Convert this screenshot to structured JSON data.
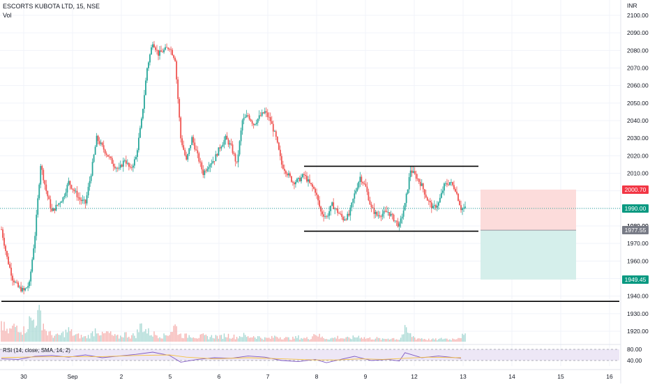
{
  "header": {
    "title": "ESCORTS KUBOTA LTD, 15, NSE",
    "volume_label": "Vol"
  },
  "colors": {
    "up": "#26a69a",
    "down": "#ef5350",
    "volume_up": "#a7d8d3",
    "volume_down": "#f5b3b1",
    "rsi_line": "#7e57c2",
    "rsi_ma": "#f5c142",
    "rsi_band": "#ede7f6",
    "stop_zone": "#fcdcdb",
    "target_zone": "#d5efeb",
    "price_line": "#26a69a",
    "stop_badge": "#f23645",
    "target_badge": "#089981",
    "entry_badge": "#787b86"
  },
  "chart_data": {
    "type": "candlestick",
    "symbol": "ESCORTS KUBOTA LTD",
    "interval": "15",
    "exchange": "NSE",
    "currency": "INR",
    "y_ticks": [
      1920,
      1930,
      1940,
      1950,
      1960,
      1970,
      1980,
      1990,
      2000,
      2010,
      2020,
      2030,
      2040,
      2050,
      2060,
      2070,
      2080,
      2090,
      2100
    ],
    "y_tick_labels": [
      "1920.00",
      "1930.00",
      "1940.00",
      "1950.00",
      "1960.00",
      "1970.00",
      "1980.00",
      "1990.00",
      "2000.00",
      "2010.00",
      "2020.00",
      "2030.00",
      "2040.00",
      "2050.00",
      "2060.00",
      "2070.00",
      "2080.00",
      "2090.00",
      "2100.00"
    ],
    "x_labels": [
      "30",
      "Sep",
      "2",
      "5",
      "6",
      "7",
      "8",
      "9",
      "12",
      "13",
      "14",
      "15",
      "16"
    ],
    "price_path": [
      [
        0,
        1978
      ],
      [
        1,
        1962
      ],
      [
        2,
        1950
      ],
      [
        3,
        1945
      ],
      [
        4,
        1943
      ],
      [
        5,
        1947
      ],
      [
        6,
        1975
      ],
      [
        7,
        2015
      ],
      [
        8,
        2000
      ],
      [
        9,
        1988
      ],
      [
        10,
        1992
      ],
      [
        11,
        1996
      ],
      [
        12,
        2005
      ],
      [
        13,
        2000
      ],
      [
        14,
        1995
      ],
      [
        15,
        1993
      ],
      [
        16,
        2010
      ],
      [
        17,
        2030
      ],
      [
        18,
        2025
      ],
      [
        19,
        2020
      ],
      [
        20,
        2015
      ],
      [
        21,
        2012
      ],
      [
        22,
        2018
      ],
      [
        23,
        2012
      ],
      [
        24,
        2019
      ],
      [
        25,
        2040
      ],
      [
        26,
        2070
      ],
      [
        27,
        2085
      ],
      [
        28,
        2078
      ],
      [
        29,
        2080
      ],
      [
        30,
        2082
      ],
      [
        31,
        2075
      ],
      [
        32,
        2030
      ],
      [
        33,
        2017
      ],
      [
        34,
        2030
      ],
      [
        35,
        2020
      ],
      [
        36,
        2010
      ],
      [
        37,
        2015
      ],
      [
        38,
        2018
      ],
      [
        39,
        2025
      ],
      [
        40,
        2030
      ],
      [
        41,
        2025
      ],
      [
        42,
        2015
      ],
      [
        43,
        2040
      ],
      [
        44,
        2043
      ],
      [
        45,
        2038
      ],
      [
        46,
        2042
      ],
      [
        47,
        2045
      ],
      [
        48,
        2040
      ],
      [
        49,
        2030
      ],
      [
        50,
        2015
      ],
      [
        51,
        2010
      ],
      [
        52,
        2005
      ],
      [
        53,
        2006
      ],
      [
        54,
        2009
      ],
      [
        55,
        2004
      ],
      [
        56,
        2000
      ],
      [
        57,
        1988
      ],
      [
        58,
        1985
      ],
      [
        59,
        1992
      ],
      [
        60,
        1988
      ],
      [
        61,
        1984
      ],
      [
        62,
        1986
      ],
      [
        63,
        1998
      ],
      [
        64,
        2008
      ],
      [
        65,
        2002
      ],
      [
        66,
        1990
      ],
      [
        67,
        1986
      ],
      [
        68,
        1987
      ],
      [
        69,
        1988
      ],
      [
        70,
        1984
      ],
      [
        71,
        1980
      ],
      [
        72,
        1992
      ],
      [
        73,
        2012
      ],
      [
        74,
        2008
      ],
      [
        75,
        2003
      ],
      [
        76,
        1995
      ],
      [
        77,
        1990
      ],
      [
        78,
        1993
      ],
      [
        79,
        2003
      ],
      [
        80,
        2005
      ],
      [
        81,
        2001
      ],
      [
        82,
        1990
      ]
    ],
    "volume_path": [
      [
        0,
        16
      ],
      [
        1,
        8
      ],
      [
        2,
        12
      ],
      [
        3,
        15
      ],
      [
        4,
        10
      ],
      [
        5,
        18
      ],
      [
        6,
        20
      ],
      [
        7,
        24
      ],
      [
        8,
        9
      ],
      [
        9,
        6
      ],
      [
        10,
        5
      ],
      [
        11,
        7
      ],
      [
        12,
        10
      ],
      [
        13,
        6
      ],
      [
        14,
        5
      ],
      [
        15,
        4
      ],
      [
        16,
        6
      ],
      [
        17,
        12
      ],
      [
        18,
        6
      ],
      [
        19,
        8
      ],
      [
        20,
        5
      ],
      [
        21,
        4
      ],
      [
        22,
        7
      ],
      [
        23,
        5
      ],
      [
        24,
        6
      ],
      [
        25,
        15
      ],
      [
        26,
        9
      ],
      [
        27,
        7
      ],
      [
        28,
        6
      ],
      [
        29,
        5
      ],
      [
        30,
        8
      ],
      [
        31,
        14
      ],
      [
        32,
        6
      ],
      [
        33,
        5
      ],
      [
        34,
        6
      ],
      [
        35,
        4
      ],
      [
        36,
        5
      ],
      [
        37,
        4
      ],
      [
        38,
        5
      ],
      [
        39,
        4
      ],
      [
        40,
        6
      ],
      [
        41,
        5
      ],
      [
        42,
        4
      ],
      [
        43,
        6
      ],
      [
        44,
        4
      ],
      [
        45,
        5
      ],
      [
        46,
        4
      ],
      [
        47,
        3
      ],
      [
        48,
        3
      ],
      [
        49,
        5
      ],
      [
        50,
        4
      ],
      [
        51,
        3
      ],
      [
        52,
        3
      ],
      [
        53,
        4
      ],
      [
        54,
        3
      ],
      [
        55,
        3
      ],
      [
        56,
        8
      ],
      [
        57,
        4
      ],
      [
        58,
        3
      ],
      [
        59,
        3
      ],
      [
        60,
        4
      ],
      [
        61,
        3
      ],
      [
        62,
        3
      ],
      [
        63,
        4
      ],
      [
        64,
        5
      ],
      [
        65,
        3
      ],
      [
        66,
        3
      ],
      [
        67,
        3
      ],
      [
        68,
        2
      ],
      [
        69,
        3
      ],
      [
        70,
        3
      ],
      [
        71,
        2
      ],
      [
        72,
        10
      ],
      [
        73,
        6
      ],
      [
        74,
        3
      ],
      [
        75,
        3
      ],
      [
        76,
        2
      ],
      [
        77,
        2
      ],
      [
        78,
        2
      ],
      [
        79,
        3
      ],
      [
        80,
        2
      ],
      [
        81,
        3
      ],
      [
        82,
        5
      ]
    ],
    "rsi_path": [
      [
        0,
        46
      ],
      [
        3,
        44
      ],
      [
        6,
        55
      ],
      [
        9,
        58
      ],
      [
        12,
        52
      ],
      [
        15,
        60
      ],
      [
        18,
        50
      ],
      [
        21,
        56
      ],
      [
        24,
        62
      ],
      [
        27,
        70
      ],
      [
        30,
        58
      ],
      [
        32,
        34
      ],
      [
        35,
        44
      ],
      [
        38,
        50
      ],
      [
        41,
        48
      ],
      [
        44,
        56
      ],
      [
        47,
        52
      ],
      [
        50,
        40
      ],
      [
        53,
        36
      ],
      [
        56,
        44
      ],
      [
        58,
        32
      ],
      [
        61,
        46
      ],
      [
        63,
        55
      ],
      [
        66,
        40
      ],
      [
        69,
        44
      ],
      [
        71,
        38
      ],
      [
        72,
        68
      ],
      [
        75,
        50
      ],
      [
        78,
        56
      ],
      [
        82,
        48
      ]
    ],
    "rsi_ma_path": [
      [
        0,
        50
      ],
      [
        6,
        53
      ],
      [
        12,
        54
      ],
      [
        18,
        54
      ],
      [
        24,
        58
      ],
      [
        30,
        60
      ],
      [
        33,
        52
      ],
      [
        38,
        46
      ],
      [
        44,
        50
      ],
      [
        50,
        46
      ],
      [
        56,
        42
      ],
      [
        60,
        42
      ],
      [
        64,
        46
      ],
      [
        68,
        44
      ],
      [
        72,
        48
      ],
      [
        76,
        52
      ],
      [
        82,
        50
      ]
    ],
    "horizontal_lines": [
      {
        "start": 54,
        "end": "right",
        "price": 2014
      },
      {
        "start": 54,
        "end": "right",
        "price": 1977
      },
      {
        "start": 0,
        "end": "axis",
        "price": 1937
      }
    ],
    "position": {
      "entry": 1977.55,
      "stop": 2000.7,
      "target": 1949.45,
      "current": 1990.0
    },
    "price_labels": {
      "stop": "2000.70",
      "current": "1990.00",
      "entry": "1977.55",
      "target": "1949.45",
      "hidden_behind": "1980.00"
    },
    "rsi": {
      "label": "RSI (14, close, SMA, 14, 2)",
      "levels": [
        80,
        40
      ],
      "level_labels": [
        "80.00",
        "40.00"
      ]
    }
  }
}
